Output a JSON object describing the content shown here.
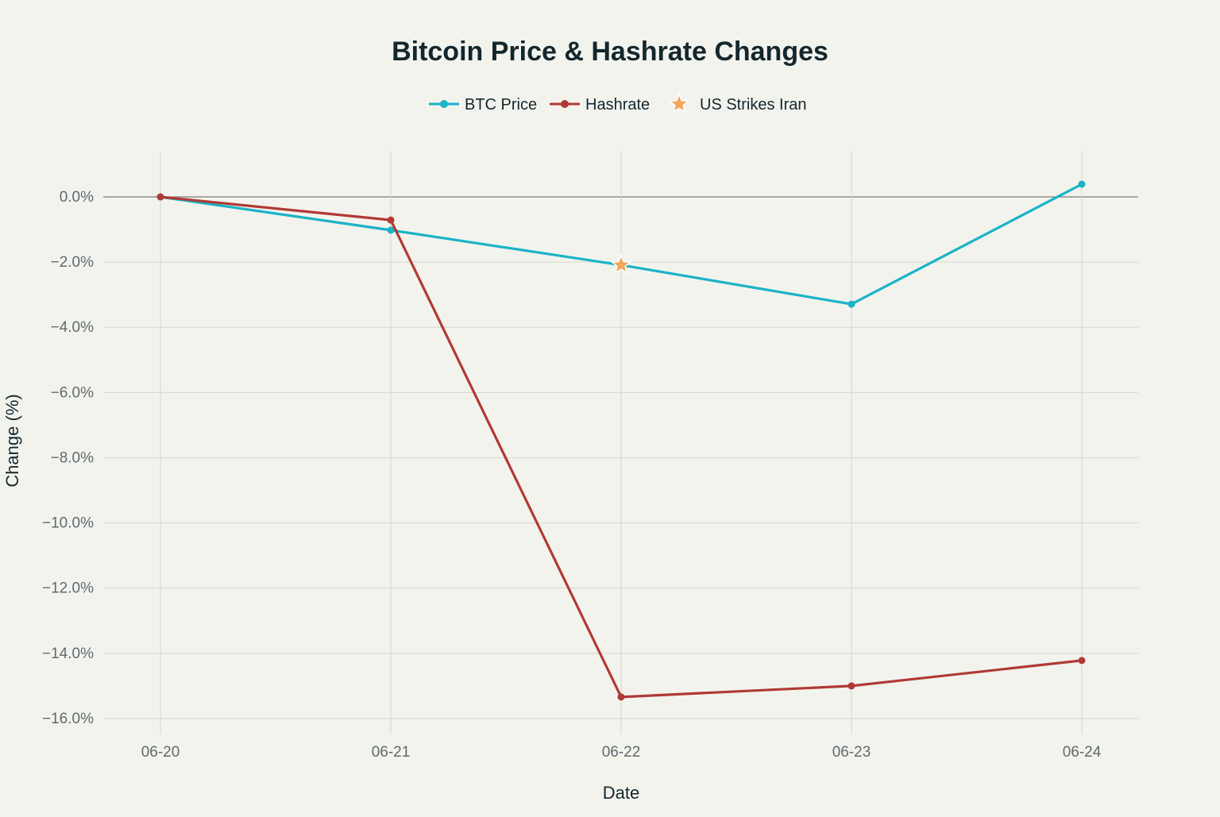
{
  "chart_data": {
    "type": "line",
    "title": "Bitcoin Price & Hashrate Changes",
    "xlabel": "Date",
    "ylabel": "Change (%)",
    "categories": [
      "06-20",
      "06-21",
      "06-22",
      "06-23",
      "06-24"
    ],
    "ylim": [
      -16.5,
      1.4
    ],
    "yticks": [
      0,
      -2,
      -4,
      -6,
      -8,
      -10,
      -12,
      -14,
      -16
    ],
    "ytick_labels": [
      "0.0%",
      "−2.0%",
      "−4.0%",
      "−6.0%",
      "−8.0%",
      "−10.0%",
      "−12.0%",
      "−14.0%",
      "−16.0%"
    ],
    "grid": true,
    "legend_position": "top-center",
    "series": [
      {
        "name": "BTC Price",
        "color": "#1ab3c8",
        "values": [
          0,
          -1.02,
          -2.09,
          -3.29,
          0.39
        ]
      },
      {
        "name": "Hashrate",
        "color": "#b03a35",
        "values": [
          0,
          -0.71,
          -15.34,
          -15.0,
          -14.22
        ]
      }
    ],
    "annotations": [
      {
        "name": "US Strikes Iran",
        "marker": "star",
        "color": "#f2a65a",
        "x": "06-22",
        "y": -2.09
      }
    ]
  }
}
